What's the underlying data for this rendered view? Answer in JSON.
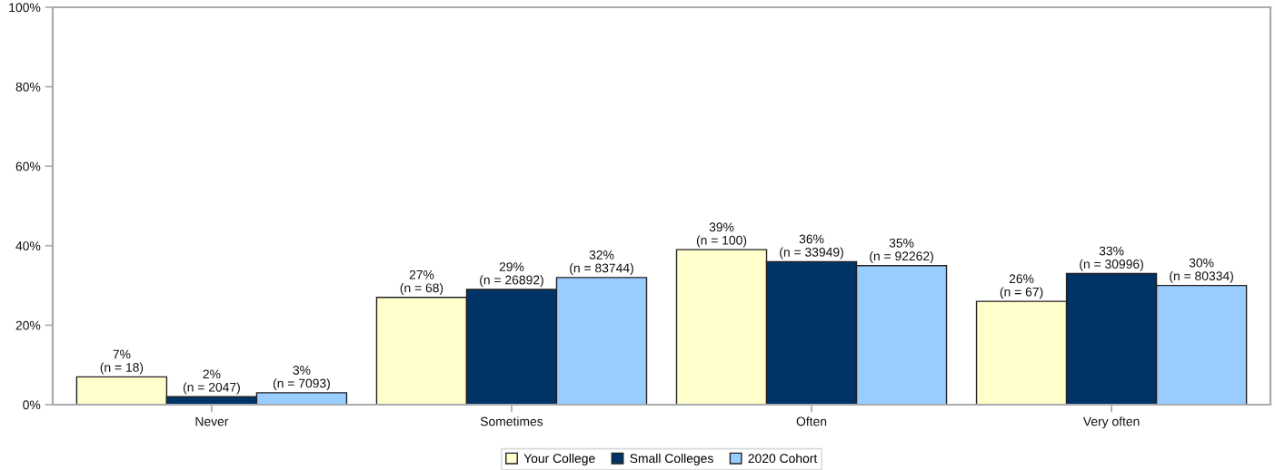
{
  "chart_data": {
    "type": "bar",
    "categories": [
      "Never",
      "Sometimes",
      "Often",
      "Very often"
    ],
    "ylim": [
      0,
      100
    ],
    "yticks": [
      {
        "value": 0,
        "label": "0%"
      },
      {
        "value": 20,
        "label": "20%"
      },
      {
        "value": 40,
        "label": "40%"
      },
      {
        "value": 60,
        "label": "60%"
      },
      {
        "value": 80,
        "label": "80%"
      },
      {
        "value": 100,
        "label": "100%"
      }
    ],
    "legend": "bottom",
    "series": [
      {
        "name": "Your College",
        "color": "#ffffcc",
        "values": [
          7,
          27,
          39,
          26
        ],
        "value_labels": [
          "7%\n(n = 18)",
          "27%\n(n = 68)",
          "39%\n(n = 100)",
          "26%\n(n = 67)"
        ]
      },
      {
        "name": "Small Colleges",
        "color": "#003366",
        "values": [
          2,
          29,
          36,
          33
        ],
        "value_labels": [
          "2%\n(n = 2047)",
          "29%\n(n = 26892)",
          "36%\n(n = 33949)",
          "33%\n(n = 30996)"
        ]
      },
      {
        "name": "2020 Cohort",
        "color": "#99ccff",
        "values": [
          3,
          32,
          35,
          30
        ],
        "value_labels": [
          "3%\n(n = 7093)",
          "32%\n(n = 83744)",
          "35%\n(n = 92262)",
          "30%\n(n = 80334)"
        ]
      }
    ]
  }
}
